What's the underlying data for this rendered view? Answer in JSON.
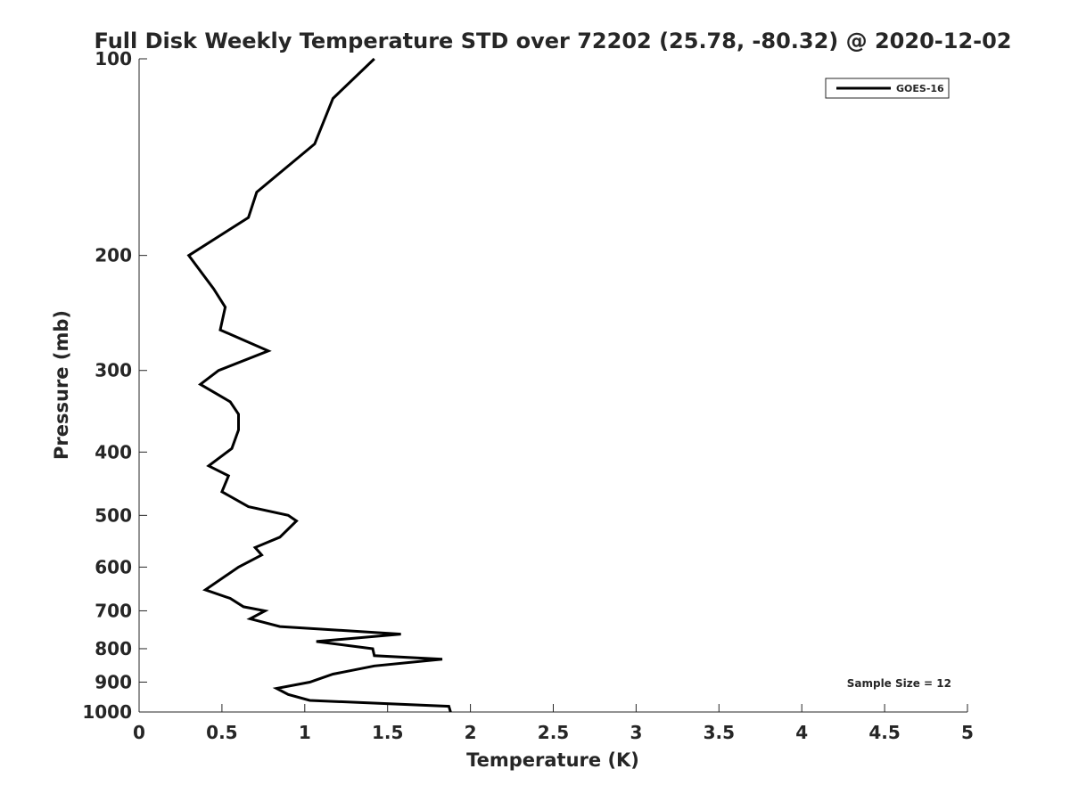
{
  "chart_data": {
    "type": "line",
    "title": "Full Disk Weekly Temperature STD over 72202 (25.78, -80.32) @ 2020-12-02",
    "xlabel": "Temperature (K)",
    "ylabel": "Pressure (mb)",
    "xlim": [
      0,
      5
    ],
    "ylim": [
      100,
      1000
    ],
    "y_scale": "log",
    "y_reversed": true,
    "grid": false,
    "x_ticks": [
      0,
      0.5,
      1,
      1.5,
      2,
      2.5,
      3,
      3.5,
      4,
      4.5,
      5
    ],
    "x_tick_labels": [
      "0",
      "0.5",
      "1",
      "1.5",
      "2",
      "2.5",
      "3",
      "3.5",
      "4",
      "4.5",
      "5"
    ],
    "y_ticks": [
      100,
      200,
      300,
      400,
      500,
      600,
      700,
      800,
      900,
      1000
    ],
    "y_tick_labels": [
      "100",
      "200",
      "300",
      "400",
      "500",
      "600",
      "700",
      "800",
      "900",
      "1000"
    ],
    "legend": {
      "placement": "top-right",
      "entries": [
        "GOES-16"
      ]
    },
    "annotation": "Sample Size = 12",
    "series": [
      {
        "name": "GOES-16",
        "color": "#000000",
        "points": [
          [
            1.42,
            100
          ],
          [
            1.17,
            115
          ],
          [
            1.06,
            135
          ],
          [
            0.71,
            160
          ],
          [
            0.66,
            175
          ],
          [
            0.3,
            200
          ],
          [
            0.45,
            225
          ],
          [
            0.52,
            240
          ],
          [
            0.49,
            260
          ],
          [
            0.78,
            280
          ],
          [
            0.48,
            300
          ],
          [
            0.37,
            315
          ],
          [
            0.55,
            335
          ],
          [
            0.6,
            350
          ],
          [
            0.6,
            370
          ],
          [
            0.56,
            395
          ],
          [
            0.42,
            420
          ],
          [
            0.54,
            435
          ],
          [
            0.5,
            460
          ],
          [
            0.66,
            485
          ],
          [
            0.9,
            500
          ],
          [
            0.95,
            510
          ],
          [
            0.85,
            540
          ],
          [
            0.7,
            560
          ],
          [
            0.74,
            575
          ],
          [
            0.6,
            600
          ],
          [
            0.4,
            650
          ],
          [
            0.55,
            670
          ],
          [
            0.63,
            690
          ],
          [
            0.76,
            700
          ],
          [
            0.67,
            720
          ],
          [
            0.85,
            740
          ],
          [
            1.58,
            760
          ],
          [
            1.07,
            780
          ],
          [
            1.41,
            800
          ],
          [
            1.42,
            820
          ],
          [
            1.83,
            830
          ],
          [
            1.42,
            850
          ],
          [
            1.17,
            875
          ],
          [
            1.03,
            900
          ],
          [
            0.83,
            920
          ],
          [
            0.9,
            940
          ],
          [
            1.03,
            960
          ],
          [
            1.87,
            980
          ],
          [
            1.88,
            1000
          ]
        ]
      }
    ]
  }
}
